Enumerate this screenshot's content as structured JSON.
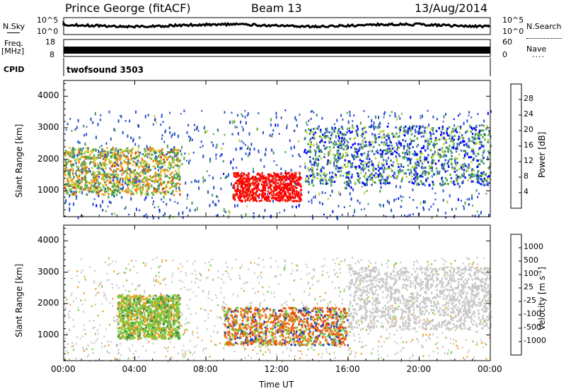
{
  "header": {
    "station": "Prince George (fitACF)",
    "beam": "Beam 13",
    "date": "13/Aug/2014"
  },
  "side_labels": {
    "nsky": "N.Sky",
    "freq": "Freq.",
    "mhz": "[MHz]",
    "cpid": "CPID",
    "nsearch": "N.Search",
    "nave": "Nave"
  },
  "strip_ticks": {
    "noise_top_left": "10^5",
    "noise_bottom_left": "10^0",
    "noise_top_right": "10^5",
    "noise_bottom_right": "10^0",
    "freq_top": "18",
    "freq_bottom": "8",
    "nave_top": "60",
    "nave_bottom": "0"
  },
  "cpid_text": "twofsound 3503",
  "colors": {
    "power_scale": [
      "#0000ff",
      "#2850c8",
      "#3f8f6f",
      "#4faa3c",
      "#b5d43a",
      "#f2b21a",
      "#f07a10",
      "#e83814",
      "#ff0000"
    ],
    "velocity_scale": [
      "#1a3cc8",
      "#2f5fa8",
      "#3b8a53",
      "#79c93c",
      "#c8c8c8",
      "#c8c8c8",
      "#f2a020",
      "#f07010",
      "#e84010",
      "#ff0000"
    ]
  },
  "chart_data": [
    {
      "type": "heatmap",
      "name": "power",
      "ylabel": "Slant Range [km]",
      "xlabel": "",
      "xlim": [
        "00:00",
        "24:00"
      ],
      "ylim": [
        180,
        4500
      ],
      "yticks": [
        "1000",
        "2000",
        "3000",
        "4000"
      ],
      "colorbar_label": "Power [dB]",
      "colorbar_ticks": [
        "4",
        "8",
        "12",
        "16",
        "20",
        "24",
        "28"
      ],
      "features": [
        {
          "time_start": "00:00",
          "time_end": "06:30",
          "range_min": 900,
          "range_max": 2400,
          "power_db": "12-20"
        },
        {
          "time_start": "09:30",
          "time_end": "13:20",
          "range_min": 700,
          "range_max": 1600,
          "power_db": "28+"
        },
        {
          "time_start": "13:30",
          "time_end": "24:00",
          "range_min": 1200,
          "range_max": 3100,
          "power_db": "4-16"
        }
      ]
    },
    {
      "type": "heatmap",
      "name": "velocity",
      "ylabel": "Slant Range [km]",
      "xlabel": "Time UT",
      "xlim": [
        "00:00",
        "24:00"
      ],
      "ylim": [
        180,
        4500
      ],
      "xticks": [
        "00:00",
        "04:00",
        "08:00",
        "12:00",
        "16:00",
        "20:00",
        "00:00"
      ],
      "yticks": [
        "1000",
        "2000",
        "3000",
        "4000"
      ],
      "colorbar_label": "Velocity [m s^-1]",
      "colorbar_ticks": [
        "1000",
        "500",
        "100",
        "25",
        "-25",
        "-100",
        "-500",
        "-1000"
      ],
      "features": [
        {
          "time_start": "03:00",
          "time_end": "06:30",
          "range_min": 900,
          "range_max": 2300,
          "velocity": "-100 to 100"
        },
        {
          "time_start": "09:00",
          "time_end": "16:00",
          "range_min": 700,
          "range_max": 1900,
          "velocity": "-500 to 500"
        },
        {
          "time_start": "16:00",
          "time_end": "24:00",
          "range_min": 1200,
          "range_max": 3200,
          "velocity": "-25 to 25"
        }
      ]
    }
  ]
}
